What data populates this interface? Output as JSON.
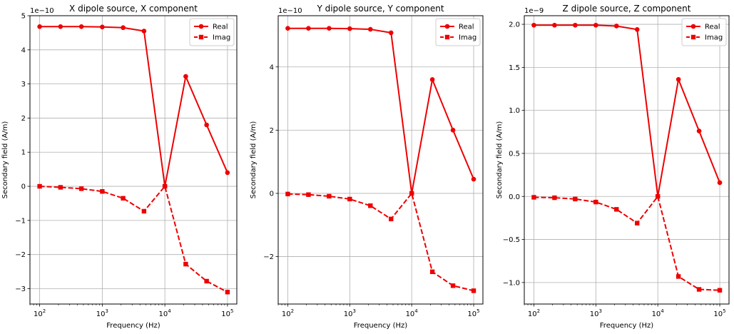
{
  "chart_data": [
    {
      "type": "line",
      "title": "X dipole source, X component",
      "xlabel": "Frequency (Hz)",
      "ylabel": "Secondary field (A/m)",
      "xscale": "log",
      "xlim": [
        70,
        141000
      ],
      "ylim": [
        -3.45,
        5.0
      ],
      "y_multiplier_label": "1e−10",
      "xtick_labels": [
        {
          "base": "10",
          "exp": "2"
        },
        {
          "base": "10",
          "exp": "3"
        },
        {
          "base": "10",
          "exp": "4"
        },
        {
          "base": "10",
          "exp": "5"
        }
      ],
      "ytick_values": [
        -3,
        -2,
        -1,
        0,
        1,
        2,
        3,
        4,
        5
      ],
      "ytick_labels": [
        "−3",
        "−2",
        "−1",
        "0",
        "1",
        "2",
        "3",
        "4",
        "5"
      ],
      "grid": true,
      "legend_position": "top-right",
      "x": [
        100,
        215.4,
        464.2,
        1000,
        2154,
        4642,
        10000,
        21540,
        46420,
        100000
      ],
      "series": [
        {
          "name": "Real",
          "style": "solid",
          "marker": "circle",
          "color": "#ee0000",
          "values": [
            4.68,
            4.68,
            4.68,
            4.67,
            4.65,
            4.55,
            0.0,
            3.22,
            1.8,
            0.4
          ]
        },
        {
          "name": "Imag",
          "style": "dashed",
          "marker": "square",
          "color": "#ee0000",
          "values": [
            0.0,
            -0.03,
            -0.07,
            -0.15,
            -0.35,
            -0.73,
            0.0,
            -2.28,
            -2.78,
            -3.1
          ]
        }
      ]
    },
    {
      "type": "line",
      "title": "Y dipole source, Y component",
      "xlabel": "Frequency (Hz)",
      "ylabel": "Secondary field (A/m)",
      "xscale": "log",
      "xlim": [
        70,
        141000
      ],
      "ylim": [
        -3.5,
        5.62
      ],
      "y_multiplier_label": "1e−10",
      "xtick_labels": [
        {
          "base": "10",
          "exp": "2"
        },
        {
          "base": "10",
          "exp": "3"
        },
        {
          "base": "10",
          "exp": "4"
        },
        {
          "base": "10",
          "exp": "5"
        }
      ],
      "ytick_values": [
        -2,
        0,
        2,
        4
      ],
      "ytick_labels": [
        "−2",
        "0",
        "2",
        "4"
      ],
      "grid": true,
      "legend_position": "top-right",
      "x": [
        100,
        215.4,
        464.2,
        1000,
        2154,
        4642,
        10000,
        21540,
        46420,
        100000
      ],
      "series": [
        {
          "name": "Real",
          "style": "solid",
          "marker": "circle",
          "color": "#ee0000",
          "values": [
            5.22,
            5.22,
            5.22,
            5.21,
            5.19,
            5.08,
            0.0,
            3.6,
            2.0,
            0.45
          ]
        },
        {
          "name": "Imag",
          "style": "dashed",
          "marker": "square",
          "color": "#ee0000",
          "values": [
            -0.02,
            -0.04,
            -0.09,
            -0.18,
            -0.39,
            -0.81,
            0.0,
            -2.48,
            -2.92,
            -3.08
          ]
        }
      ]
    },
    {
      "type": "line",
      "title": "Z dipole source, Z component",
      "xlabel": "Frequency (Hz)",
      "ylabel": "Secondary field (A/m)",
      "xscale": "log",
      "xlim": [
        70,
        141000
      ],
      "ylim": [
        -1.25,
        2.1
      ],
      "y_multiplier_label": "1e−9",
      "xtick_labels": [
        {
          "base": "10",
          "exp": "2"
        },
        {
          "base": "10",
          "exp": "3"
        },
        {
          "base": "10",
          "exp": "4"
        },
        {
          "base": "10",
          "exp": "5"
        }
      ],
      "ytick_values": [
        -1.0,
        -0.5,
        0.0,
        0.5,
        1.0,
        1.5,
        2.0
      ],
      "ytick_labels": [
        "−1.0",
        "−0.5",
        "0.0",
        "0.5",
        "1.0",
        "1.5",
        "2.0"
      ],
      "grid": true,
      "legend_position": "top-right",
      "x": [
        100,
        215.4,
        464.2,
        1000,
        2154,
        4642,
        10000,
        21540,
        46420,
        100000
      ],
      "series": [
        {
          "name": "Real",
          "style": "solid",
          "marker": "circle",
          "color": "#ee0000",
          "values": [
            1.99,
            1.99,
            1.99,
            1.99,
            1.98,
            1.94,
            0.0,
            1.36,
            0.76,
            0.16
          ]
        },
        {
          "name": "Imag",
          "style": "dashed",
          "marker": "square",
          "color": "#ee0000",
          "values": [
            -0.01,
            -0.015,
            -0.03,
            -0.065,
            -0.15,
            -0.31,
            0.0,
            -0.93,
            -1.08,
            -1.09
          ]
        }
      ]
    }
  ]
}
